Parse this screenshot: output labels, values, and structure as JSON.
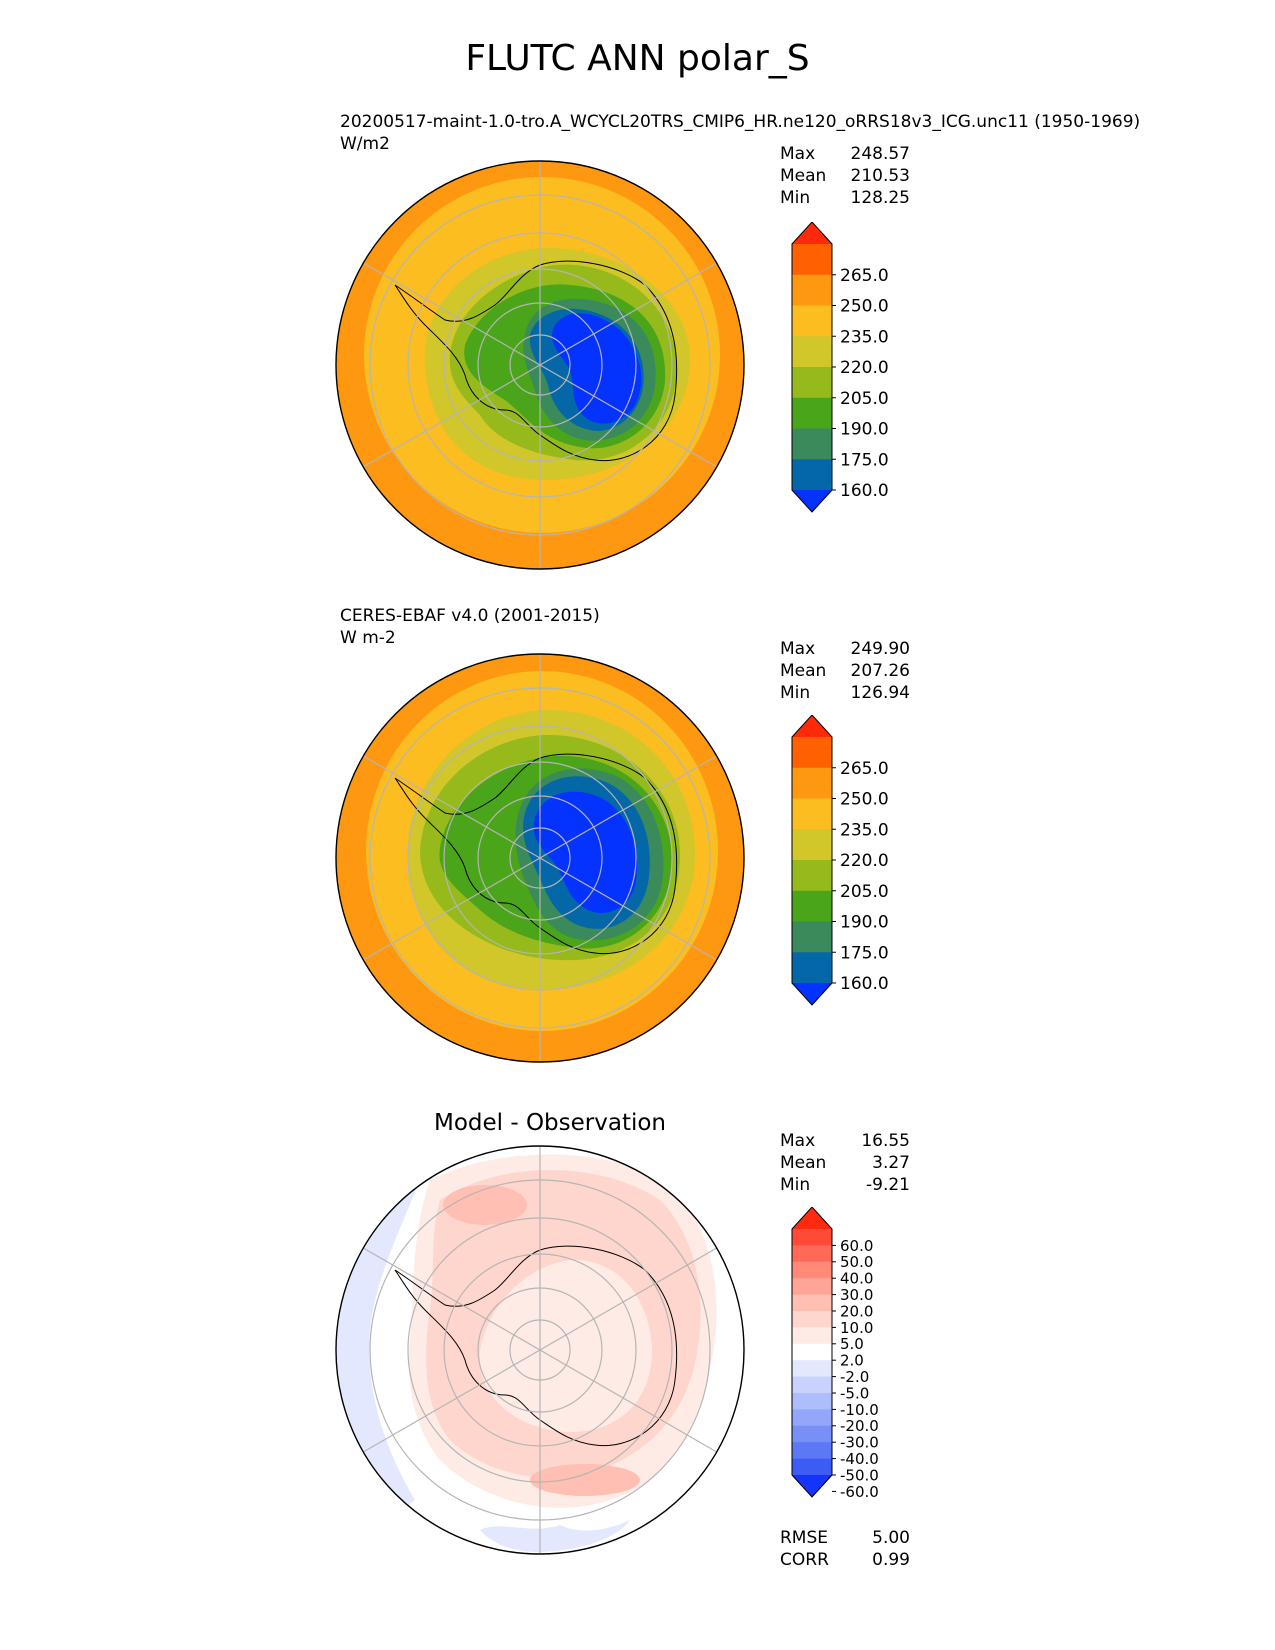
{
  "title": "FLUTC ANN polar_S",
  "panels": [
    {
      "subtitle": "20200517-maint-1.0-tro.A_WCYCL20TRS_CMIP6_HR.ne120_oRRS18v3_ICG.unc11 (1950-1969)",
      "units": "W/m2",
      "stats": [
        {
          "label": "Max",
          "value": "248.57"
        },
        {
          "label": "Mean",
          "value": "210.53"
        },
        {
          "label": "Min",
          "value": "128.25"
        }
      ]
    },
    {
      "subtitle": "CERES-EBAF v4.0 (2001-2015)",
      "units": "W m-2",
      "stats": [
        {
          "label": "Max",
          "value": "249.90"
        },
        {
          "label": "Mean",
          "value": "207.26"
        },
        {
          "label": "Min",
          "value": "126.94"
        }
      ]
    },
    {
      "title": "Model - Observation",
      "stats": [
        {
          "label": "Max",
          "value": "16.55"
        },
        {
          "label": "Mean",
          "value": "3.27"
        },
        {
          "label": "Min",
          "value": "-9.21"
        }
      ],
      "metrics": [
        {
          "label": "RMSE",
          "value": "5.00"
        },
        {
          "label": "CORR",
          "value": "0.99"
        }
      ]
    }
  ],
  "colorbars": {
    "field": {
      "levels": [
        "265.0",
        "250.0",
        "235.0",
        "220.0",
        "205.0",
        "190.0",
        "175.0",
        "160.0",
        "145.0"
      ],
      "colors": [
        "#ff2a0a",
        "#ff6000",
        "#ff9811",
        "#fcbd20",
        "#d1c62a",
        "#96ba1b",
        "#4aa51a",
        "#3a8a5c",
        "#0467a8",
        "#0433ff"
      ]
    },
    "diff": {
      "levels": [
        "60.0",
        "50.0",
        "40.0",
        "30.0",
        "20.0",
        "10.0",
        "5.0",
        "2.0",
        "-2.0",
        "-5.0",
        "-10.0",
        "-20.0",
        "-30.0",
        "-40.0",
        "-50.0",
        "-60.0"
      ],
      "colors": [
        "#ff2a10",
        "#ff4a38",
        "#ff6a58",
        "#ff8a78",
        "#ffa596",
        "#ffbfb2",
        "#ffd6cd",
        "#ffebe6",
        "#ffffff",
        "#e3e8ff",
        "#c9d2fc",
        "#aebdfb",
        "#93a6f9",
        "#7890f6",
        "#5c78f4",
        "#3d5cf5",
        "#1534fb"
      ]
    }
  },
  "chart_data": [
    {
      "type": "heatmap",
      "projection": "south-polar-stereographic",
      "title": "20200517-maint-1.0-tro.A_WCYCL20TRS_CMIP6_HR.ne120_oRRS18v3_ICG.unc11 (1950-1969)",
      "units": "W/m2",
      "stats": {
        "max": 248.57,
        "mean": 210.53,
        "min": 128.25
      },
      "levels": [
        145,
        160,
        175,
        190,
        205,
        220,
        235,
        250,
        265
      ],
      "extend": "both"
    },
    {
      "type": "heatmap",
      "projection": "south-polar-stereographic",
      "title": "CERES-EBAF v4.0 (2001-2015)",
      "units": "W m-2",
      "stats": {
        "max": 249.9,
        "mean": 207.26,
        "min": 126.94
      },
      "levels": [
        145,
        160,
        175,
        190,
        205,
        220,
        235,
        250,
        265
      ],
      "extend": "both"
    },
    {
      "type": "heatmap",
      "projection": "south-polar-stereographic",
      "title": "Model - Observation",
      "stats": {
        "max": 16.55,
        "mean": 3.27,
        "min": -9.21
      },
      "rmse": 5.0,
      "corr": 0.99,
      "levels": [
        -60,
        -50,
        -40,
        -30,
        -20,
        -10,
        -5,
        -2,
        2,
        5,
        10,
        20,
        30,
        40,
        50,
        60
      ],
      "extend": "both"
    }
  ]
}
